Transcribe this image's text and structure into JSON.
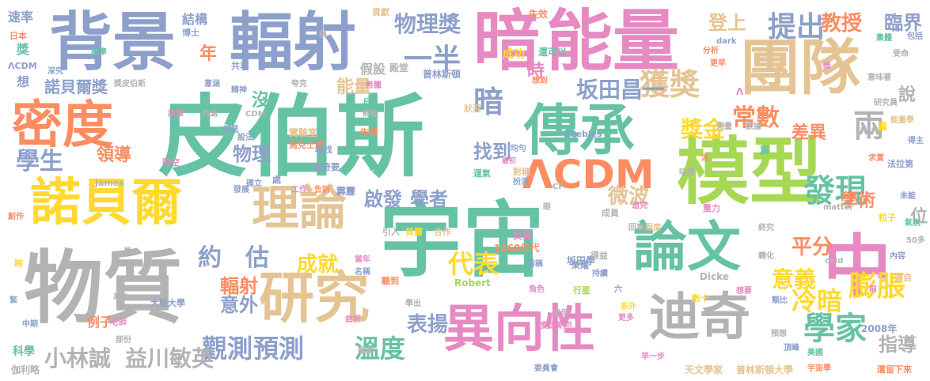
{
  "palette": {
    "green": "#66c2a5",
    "orange": "#fc8d62",
    "blue": "#8da0cb",
    "pink": "#e78ac3",
    "lime": "#a6d854",
    "yellow": "#ffd92f",
    "tan": "#e5c494",
    "gray": "#b3b3b3"
  },
  "words": {
    "w001": "皮伯斯",
    "w002": "宇宙",
    "w003": "物質",
    "w004": "模型",
    "w005": "背景",
    "w006": "輻射",
    "w007": "能量",
    "w008": "暗",
    "w009": "團隊",
    "w010": "傳承",
    "w011": "中",
    "w012": "論文",
    "w013": "研究",
    "w014": "異向性",
    "w015": "諾貝爾",
    "w016": "密度",
    "w017": "理論",
    "w018": "迪奇",
    "w019": "ΛCDM",
    "w020": "一半",
    "w021": "獲獎",
    "w022": "學家",
    "w023": "提出",
    "w024": "觀測",
    "w025": "預測",
    "w026": "溫度",
    "w027": "膨脹",
    "w028": "冷暗",
    "w029": "發現",
    "w030": "代表",
    "w031": "學生",
    "w032": "小林誠",
    "w033": "益川敏英",
    "w034": "坂田昌一",
    "w035": "物理獎",
    "w036": "常數",
    "w037": "兩",
    "w038": "教授",
    "w039": "登上",
    "w040": "臨界",
    "w041": "約",
    "w042": "估",
    "w043": "成就",
    "w044": "意義",
    "w045": "平分",
    "w046": "啟發",
    "w047": "學者",
    "w048": "找到",
    "w049": "暗",
    "w050": "微波",
    "w051": "獎金",
    "w052": "表揚",
    "w053": "指導",
    "w054": "輻射",
    "w055": "意外",
    "w056": "物理",
    "w057": "領導",
    "w058": "諾貝爾獎",
    "w059": "年",
    "w060": "能量",
    "w061": "沒",
    "w062": "時",
    "w063": "差異",
    "w064": "學術",
    "w065": "位",
    "w066": "說",
    "w067": "結構",
    "w068": "速率",
    "w069": "獎",
    "w070": "想",
    "w071": "假設",
    "w072": "殿堂",
    "w073": "成功",
    "w074": "還可以",
    "w075": "普林斯頓",
    "w076": "貢獻",
    "w077": "失效",
    "w078": "例子",
    "w079": "科學",
    "w080": "伽利略",
    "w081": "天文學家",
    "w082": "普林斯頓大學",
    "w083": "宇宙學",
    "w084": "遺留下來",
    "w085": "2008年",
    "w086": "美國",
    "w087": "1960年代",
    "w088": "坂田學",
    "w089": "Robert",
    "w090": "Dicke",
    "w091": "Peebles",
    "w092": "James",
    "w093": "matter",
    "w094": "cold",
    "w095": "dark",
    "w096": "CDM",
    "w097": "CP",
    "w098": "50多",
    "w099": "數十",
    "w100": "大阪大學",
    "w101": "實驗室",
    "w102": "馬克士威",
    "w103": "牛頓",
    "w104": "精神",
    "w105": "內涵",
    "w106": "故事",
    "w107": "時空",
    "w108": "發展",
    "w109": "迪奇要",
    "w110": "尋找",
    "w111": "霹靂",
    "w112": "告訴",
    "w113": "工作",
    "w114": "負責",
    "w115": "引入",
    "w116": "貝爾",
    "w117": "合作",
    "w118": "聽到",
    "w119": "學出",
    "w120": "角色",
    "w121": "行星",
    "w122": "俗稱",
    "w123": "榮耀",
    "w124": "委員會",
    "w125": "字母",
    "w126": "愛因斯坦",
    "w127": "系外",
    "w128": "更多",
    "w129": "早一步",
    "w130": "頂峰",
    "w131": "預想",
    "w132": "類比",
    "w133": "想要",
    "w134": "內容",
    "w135": "源自",
    "w136": "氣氛",
    "w137": "粒子",
    "w138": "未能",
    "w139": "法拉第",
    "w140": "得主",
    "w141": "研究員",
    "w142": "意味著",
    "w143": "受命",
    "w144": "包括",
    "w145": "集體",
    "w146": "更早",
    "w147": "分析",
    "w148": "日本",
    "w149": "ΛCDM",
    "w150": "標準",
    "w151": "博士",
    "w152": "深究",
    "w153": "共享",
    "w154": "意涵",
    "w155": "奬皮伯斯",
    "w156": "夸克",
    "w157": "希臘",
    "w158": "反",
    "w159": "師徒",
    "w160": "狀況",
    "w161": "對稱",
    "w162": "最初",
    "w163": "均勻",
    "w164": "運氣",
    "w165": "扮演",
    "w166": "罕見",
    "w167": "設法",
    "w168": "確立",
    "w169": "處",
    "w170": "眼",
    "w171": "成員",
    "w172": "追究",
    "w173": "重力",
    "w174": "終究",
    "w175": "程度",
    "w176": "回事",
    "w177": "得益",
    "w178": "持續",
    "w179": "六",
    "w180": "名稱",
    "w181": "當年",
    "w182": "部份",
    "w183": "中期",
    "w184": "老師",
    "w185": "緊",
    "w186": "真空",
    "w187": "員",
    "w188": "跨",
    "w189": "創作",
    "w190": "味著",
    "w191": "派",
    "w192": "求賞",
    "w193": "數據",
    "w194": "測量",
    "w195": "篇",
    "w196": "轉化",
    "w197": "稱",
    "w198": "前",
    "w199": "曲折",
    "w200": "關鍵",
    "w201": "篇",
    "w202": "想到",
    "w203": "Λ",
    "w204": "獎",
    "w205": "能量學"
  }
}
